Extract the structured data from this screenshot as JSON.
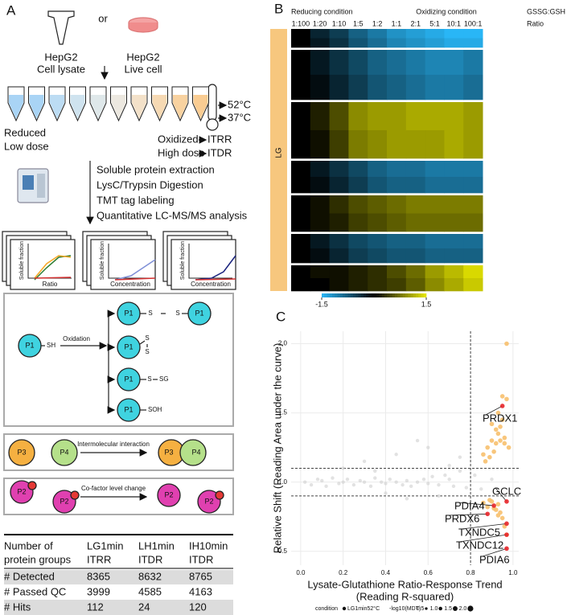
{
  "panel_labels": [
    "A",
    "B",
    "C"
  ],
  "workflow": {
    "sample_lysate": [
      "HepG2",
      "Cell lysate"
    ],
    "or": "or",
    "sample_live": [
      "HepG2",
      "Live cell"
    ],
    "temperatures": [
      "52°C",
      "37°C"
    ],
    "left_conditions": [
      "Reduced",
      "Low dose"
    ],
    "right_conditions": [
      "Oxidized",
      "High dose"
    ],
    "assays": [
      "ITRR",
      "ITDR"
    ],
    "steps": [
      "Soluble protein extraction",
      "LysC/Trypsin Digestion",
      "TMT tag labeling",
      "Quantitative LC-MS/MS analysis"
    ],
    "curve_ylabel": "Soluble fraction",
    "curve_xlabels": [
      "Ratio",
      "Concentration"
    ]
  },
  "mechanisms": {
    "oxidation": {
      "protein": "P1",
      "thiol": "SH",
      "label": "Oxidation",
      "sulfur": "S",
      "glutathione": "SG",
      "sulfenic_acid": "SOH"
    },
    "interaction": {
      "proteins": [
        "P3",
        "P4"
      ],
      "label": "Intermolecular interaction"
    },
    "cofactor": {
      "protein": "P2",
      "label": "Co-factor level change"
    }
  },
  "table": {
    "header": [
      [
        "Number of",
        "protein groups"
      ],
      [
        "LG1min",
        "ITRR"
      ],
      [
        "LH1min",
        "ITDR"
      ],
      [
        "IH10min",
        "ITDR"
      ]
    ],
    "rows": [
      [
        "# Detected",
        8365,
        8632,
        8765
      ],
      [
        "# Passed QC",
        3999,
        4585,
        4163
      ],
      [
        "# Hits",
        112,
        24,
        120
      ]
    ]
  },
  "chart_data": [
    {
      "type": "heatmap",
      "header_left": "Reducing condition",
      "header_right": "Oxidizing condition",
      "ratio_label": [
        "GSSG:GSH",
        "Ratio"
      ],
      "row_label": "LG",
      "categories": [
        "1:100",
        "1:20",
        "1:10",
        "1:5",
        "1:2",
        "1:1",
        "2:1",
        "5:1",
        "10:1",
        "100:1"
      ],
      "blocks": [
        [
          [
            0,
            -0.3,
            -0.5,
            -0.8,
            -1.0,
            -1.2,
            -1.3,
            -1.4,
            -1.5,
            -1.5
          ],
          [
            0,
            -0.2,
            -0.4,
            -0.7,
            -0.9,
            -1.1,
            -1.2,
            -1.3,
            -1.4,
            -1.4
          ]
        ],
        [
          [
            0,
            -0.2,
            -0.4,
            -0.6,
            -0.8,
            -0.9,
            -1.0,
            -1.1,
            -1.1,
            -1.0
          ],
          [
            0,
            -0.1,
            -0.3,
            -0.5,
            -0.7,
            -0.8,
            -0.9,
            -1.0,
            -1.0,
            -0.9
          ]
        ],
        [
          [
            0,
            0.2,
            0.5,
            0.9,
            1.0,
            1.0,
            1.1,
            1.1,
            1.1,
            1.0
          ],
          [
            0,
            0.1,
            0.4,
            0.8,
            0.9,
            1.0,
            1.0,
            1.0,
            1.1,
            1.0
          ]
        ],
        [
          [
            0,
            -0.2,
            -0.4,
            -0.6,
            -0.8,
            -0.9,
            -0.9,
            -1.0,
            -1.0,
            -1.0
          ],
          [
            0,
            -0.1,
            -0.3,
            -0.5,
            -0.7,
            -0.8,
            -0.8,
            -0.9,
            -0.9,
            -0.9
          ]
        ],
        [
          [
            0,
            0.1,
            0.3,
            0.5,
            0.6,
            0.7,
            0.8,
            0.8,
            0.8,
            0.8
          ],
          [
            0,
            0.1,
            0.2,
            0.4,
            0.5,
            0.6,
            0.7,
            0.7,
            0.7,
            0.7
          ]
        ],
        [
          [
            0,
            -0.2,
            -0.4,
            -0.6,
            -0.7,
            -0.8,
            -0.8,
            -0.9,
            -0.9,
            -0.9
          ],
          [
            0,
            -0.1,
            -0.3,
            -0.5,
            -0.6,
            -0.7,
            -0.7,
            -0.8,
            -0.8,
            -0.8
          ]
        ],
        [
          [
            0,
            0.1,
            0.1,
            0.2,
            0.3,
            0.5,
            0.7,
            1.0,
            1.2,
            1.4
          ],
          [
            0,
            0,
            0.1,
            0.2,
            0.3,
            0.4,
            0.6,
            0.9,
            1.1,
            1.3
          ]
        ]
      ],
      "clim": [
        -1.5,
        1.5
      ],
      "colorbar_ticks": [
        -1.5,
        1.5
      ],
      "low_color": "#29b6f6",
      "mid_color": "#000000",
      "high_color": "#e8e800"
    },
    {
      "type": "scatter",
      "xlabel": [
        "Lysate-Glutathione Ratio-Response Trend",
        "(Reading R-squared)"
      ],
      "ylabel": "Relative Shift (Reading Area under the curve)",
      "xlim": [
        -0.045,
        1.027
      ],
      "ylim": [
        0.4,
        2.09
      ],
      "xticks": [
        {
          "value": 0,
          "label": "0.0"
        },
        0.2,
        0.4,
        0.6,
        0.8,
        {
          "value": 1,
          "label": "1.0"
        }
      ],
      "yticks": [
        0.5,
        {
          "value": 1,
          "label": "1.0"
        },
        1.5,
        {
          "value": 2,
          "label": "2.0"
        }
      ],
      "grid": true,
      "thresholds": {
        "x": [
          0.8
        ],
        "y": [
          0.9,
          1.1
        ]
      },
      "series": [
        {
          "color": "#cfcfcf",
          "x": [
            0.02,
            0.05,
            0.08,
            0.1,
            0.12,
            0.15,
            0.18,
            0.2,
            0.22,
            0.25,
            0.28,
            0.3,
            0.33,
            0.35,
            0.38,
            0.4,
            0.42,
            0.45,
            0.48,
            0.5,
            0.52,
            0.55,
            0.58,
            0.6,
            0.62,
            0.65,
            0.68,
            0.7,
            0.72,
            0.75,
            0.78,
            0.82,
            0.85,
            0.9,
            0.3,
            0.45,
            0.6,
            0.7,
            0.5,
            0.2,
            0.55,
            0.65,
            0.75,
            0.4,
            0.35
          ],
          "y": [
            1.0,
            0.98,
            1.02,
            1.01,
            0.97,
            1.03,
            0.99,
            1.0,
            1.02,
            0.98,
            1.01,
            1.0,
            0.97,
            1.03,
            1.0,
            0.99,
            1.02,
            1.0,
            0.98,
            1.01,
            0.97,
            1.0,
            1.02,
            0.99,
            1.04,
            0.98,
            1.05,
            1.02,
            0.97,
            1.08,
            0.96,
            1.05,
            0.95,
            1.02,
            1.15,
            1.2,
            1.25,
            1.12,
            0.88,
            1.1,
            1.3,
            0.9,
            1.18,
            0.92,
            1.08
          ]
        },
        {
          "color": "#f7c06e",
          "x": [
            0.86,
            0.88,
            0.9,
            0.91,
            0.92,
            0.93,
            0.94,
            0.95,
            0.96,
            0.97,
            0.89,
            0.93,
            0.95,
            0.87,
            0.92,
            0.96,
            0.94,
            0.9,
            0.97,
            0.98,
            0.86,
            0.88,
            0.9,
            0.92,
            0.93,
            0.94,
            0.95,
            0.96,
            0.89,
            0.91,
            0.97,
            0.93
          ],
          "y": [
            1.2,
            1.25,
            1.3,
            1.22,
            1.28,
            1.35,
            1.4,
            1.45,
            1.32,
            1.6,
            1.18,
            1.5,
            1.62,
            1.15,
            1.38,
            1.28,
            1.3,
            1.42,
            2.0,
            1.25,
            0.85,
            0.82,
            0.86,
            0.8,
            0.84,
            0.78,
            0.74,
            0.68,
            0.87,
            0.81,
            0.62,
            0.76
          ]
        },
        {
          "color": "#e8262a",
          "x": [
            0.95,
            0.97,
            0.91,
            0.88,
            0.97,
            0.97,
            0.97
          ],
          "y": [
            1.55,
            0.86,
            0.83,
            0.77,
            0.7,
            0.62,
            0.52
          ],
          "labels": [
            "PRDX1",
            "GCLC",
            "PDIA4",
            "PRDX6",
            "TXNDC5",
            "TXNDC12",
            "PDIA6"
          ]
        }
      ],
      "legend": {
        "title": "condition",
        "entry": "LG1min52°C",
        "size_title": "-log10(MDT)",
        "sizes": [
          0.5,
          {
            "value": 1,
            "label": "1.0"
          },
          1.5,
          {
            "value": 2,
            "label": "2.0"
          }
        ]
      }
    }
  ]
}
